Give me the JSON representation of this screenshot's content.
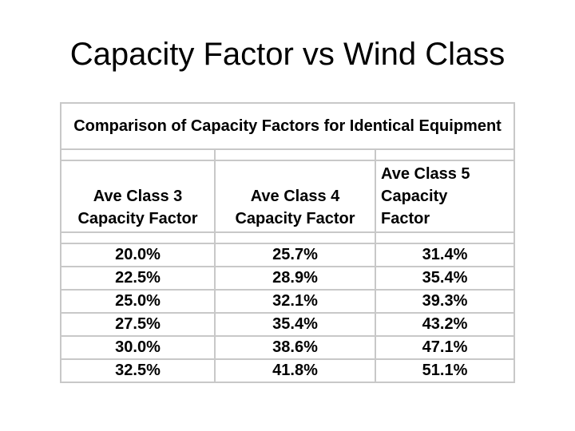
{
  "slide": {
    "title": "Capacity Factor vs Wind Class"
  },
  "table": {
    "caption": "Comparison of Capacity Factors for Identical Equipment",
    "headers": [
      [
        "Ave Class 3",
        "Capacity Factor"
      ],
      [
        "Ave Class 4",
        "Capacity Factor"
      ],
      [
        "Ave Class 5",
        "Capacity",
        "Factor"
      ]
    ],
    "rows": [
      [
        "20.0%",
        "25.7%",
        "31.4%"
      ],
      [
        "22.5%",
        "28.9%",
        "35.4%"
      ],
      [
        "25.0%",
        "32.1%",
        "39.3%"
      ],
      [
        "27.5%",
        "35.4%",
        "43.2%"
      ],
      [
        "30.0%",
        "38.6%",
        "47.1%"
      ],
      [
        "32.5%",
        "41.8%",
        "51.1%"
      ]
    ],
    "colors": {
      "border": "#c8c8c8",
      "text": "#000000",
      "background": "#ffffff"
    }
  }
}
